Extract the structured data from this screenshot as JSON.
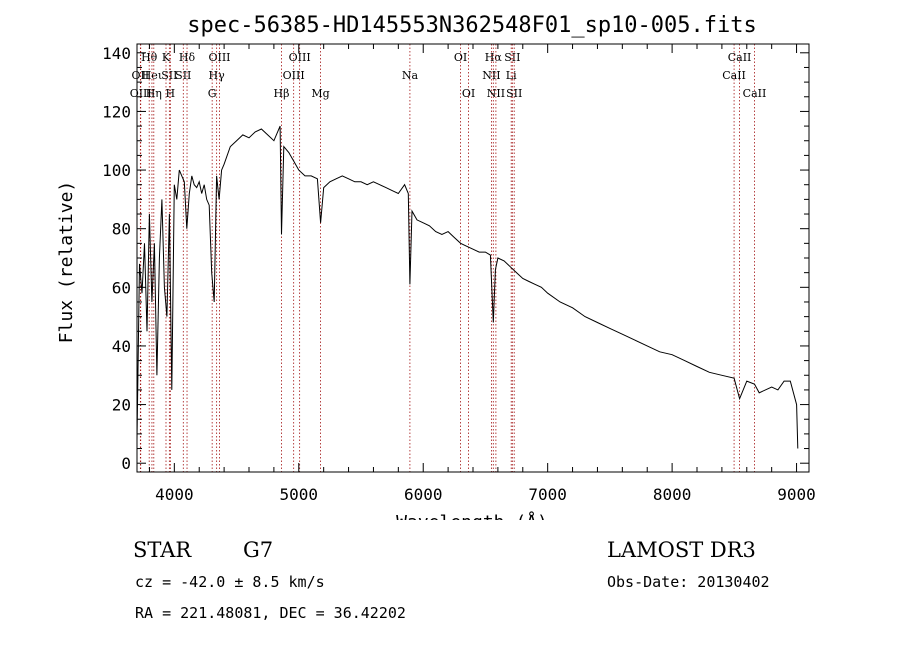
{
  "chart_data": {
    "type": "line",
    "title": "spec-56385-HD145553N362548F01_sp10-005.fits",
    "xlabel": "Wavelength (Å)",
    "ylabel": "Flux (relative)",
    "xlim": [
      3700,
      9100
    ],
    "ylim": [
      -3,
      143
    ],
    "xticks": [
      4000,
      5000,
      6000,
      7000,
      8000,
      9000
    ],
    "yticks": [
      0,
      20,
      40,
      60,
      80,
      100,
      120,
      140
    ],
    "grid": false,
    "series": [
      {
        "name": "spectrum",
        "x": [
          3700,
          3720,
          3740,
          3760,
          3780,
          3800,
          3820,
          3840,
          3860,
          3880,
          3900,
          3920,
          3940,
          3960,
          3980,
          4000,
          4020,
          4040,
          4060,
          4080,
          4100,
          4120,
          4140,
          4160,
          4180,
          4200,
          4220,
          4240,
          4260,
          4280,
          4300,
          4320,
          4340,
          4360,
          4380,
          4400,
          4450,
          4500,
          4550,
          4600,
          4650,
          4700,
          4750,
          4800,
          4850,
          4861,
          4880,
          4920,
          4960,
          5000,
          5050,
          5100,
          5150,
          5175,
          5200,
          5250,
          5300,
          5350,
          5400,
          5450,
          5500,
          5550,
          5600,
          5650,
          5700,
          5750,
          5800,
          5850,
          5880,
          5893,
          5910,
          5950,
          6000,
          6050,
          6100,
          6150,
          6200,
          6250,
          6300,
          6350,
          6400,
          6450,
          6500,
          6540,
          6563,
          6580,
          6600,
          6650,
          6700,
          6750,
          6800,
          6850,
          6900,
          6950,
          7000,
          7100,
          7200,
          7300,
          7400,
          7500,
          7600,
          7700,
          7800,
          7900,
          8000,
          8100,
          8200,
          8300,
          8400,
          8498,
          8542,
          8600,
          8662,
          8700,
          8800,
          8850,
          8900,
          8950,
          9000,
          9010
        ],
        "values": [
          8,
          68,
          58,
          75,
          45,
          85,
          55,
          75,
          30,
          70,
          90,
          60,
          50,
          85,
          25,
          95,
          90,
          100,
          98,
          96,
          80,
          92,
          98,
          95,
          94,
          96,
          92,
          95,
          90,
          88,
          65,
          55,
          98,
          90,
          100,
          102,
          108,
          110,
          112,
          111,
          113,
          114,
          112,
          110,
          115,
          78,
          108,
          106,
          103,
          100,
          98,
          98,
          97,
          82,
          94,
          96,
          97,
          98,
          97,
          96,
          96,
          95,
          96,
          95,
          94,
          93,
          92,
          95,
          92,
          61,
          86,
          83,
          82,
          81,
          79,
          78,
          79,
          77,
          75,
          74,
          73,
          72,
          72,
          71,
          48,
          66,
          70,
          69,
          67,
          65,
          63,
          62,
          61,
          60,
          58,
          55,
          53,
          50,
          48,
          46,
          44,
          42,
          40,
          38,
          37,
          35,
          33,
          31,
          30,
          29,
          22,
          28,
          27,
          24,
          26,
          25,
          28,
          28,
          20,
          5
        ]
      }
    ],
    "spectral_lines": [
      {
        "label": "Hθ",
        "wavelength": 3798,
        "row": 0
      },
      {
        "label": "OII",
        "wavelength": 3727,
        "row": 1
      },
      {
        "label": "Heι",
        "wavelength": 3820,
        "row": 1
      },
      {
        "label": "OIII",
        "wavelength": 3730,
        "row": 2
      },
      {
        "label": "Hη",
        "wavelength": 3835,
        "row": 2
      },
      {
        "label": "K",
        "wavelength": 3933,
        "row": 0
      },
      {
        "label": "SII",
        "wavelength": 3960,
        "row": 1
      },
      {
        "label": "H",
        "wavelength": 3968,
        "row": 2
      },
      {
        "label": "Hδ",
        "wavelength": 4102,
        "row": 0
      },
      {
        "label": "SII",
        "wavelength": 4072,
        "row": 1
      },
      {
        "label": "OIII",
        "wavelength": 4363,
        "row": 0
      },
      {
        "label": "Hγ",
        "wavelength": 4340,
        "row": 1
      },
      {
        "label": "G",
        "wavelength": 4304,
        "row": 2
      },
      {
        "label": "Hβ",
        "wavelength": 4861,
        "row": 2
      },
      {
        "label": "OIII",
        "wavelength": 5007,
        "row": 0
      },
      {
        "label": "OIII",
        "wavelength": 4959,
        "row": 1
      },
      {
        "label": "Mg",
        "wavelength": 5175,
        "row": 2
      },
      {
        "label": "Na",
        "wavelength": 5893,
        "row": 1
      },
      {
        "label": "OI",
        "wavelength": 6300,
        "row": 0
      },
      {
        "label": "OI",
        "wavelength": 6364,
        "row": 2
      },
      {
        "label": "Hα",
        "wavelength": 6563,
        "row": 0
      },
      {
        "label": "NII",
        "wavelength": 6548,
        "row": 1
      },
      {
        "label": "NII",
        "wavelength": 6584,
        "row": 2
      },
      {
        "label": "SII",
        "wavelength": 6716,
        "row": 0
      },
      {
        "label": "Li",
        "wavelength": 6707,
        "row": 1
      },
      {
        "label": "SII",
        "wavelength": 6731,
        "row": 2
      },
      {
        "label": "CaII",
        "wavelength": 8542,
        "row": 0
      },
      {
        "label": "CaII",
        "wavelength": 8498,
        "row": 1
      },
      {
        "label": "CaII",
        "wavelength": 8662,
        "row": 2
      }
    ]
  },
  "info": {
    "object_type": "STAR",
    "subclass": "G7",
    "redshift": "cz = -42.0 ± 8.5 km/s",
    "coords": "RA = 221.48081, DEC =  36.42202",
    "survey": "LAMOST DR3",
    "obs_date": "Obs-Date: 20130402"
  },
  "colors": {
    "spectrum": "#000000",
    "line_markers": "#a31515",
    "axes": "#000000"
  }
}
